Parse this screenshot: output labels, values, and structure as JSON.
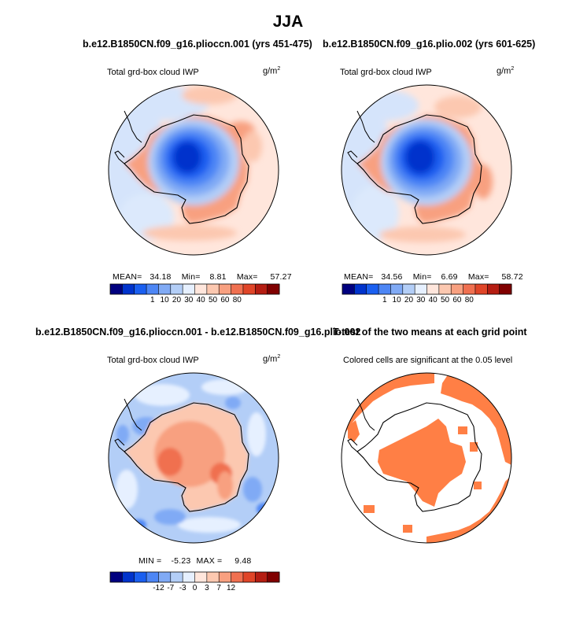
{
  "figure_title": "JJA",
  "colors": {
    "abs_scale": [
      "#00007f",
      "#0033cc",
      "#1a5ff0",
      "#4d86f5",
      "#80aaf5",
      "#b3cef7",
      "#e6f0ff",
      "#ffe6dc",
      "#fcc8b0",
      "#f8a080",
      "#f07050",
      "#e04528",
      "#b51d12",
      "#800000"
    ],
    "diff_scale": [
      "#00007f",
      "#0033cc",
      "#1a5ff0",
      "#4d86f5",
      "#80aaf5",
      "#b3cef7",
      "#e6f0ff",
      "#ffe6dc",
      "#fcc8b0",
      "#f8a080",
      "#f07050",
      "#e04528",
      "#b51d12",
      "#800000"
    ],
    "significance": "#ff7f45"
  },
  "panels": [
    {
      "run_title": "b.e12.B1850CN.f09_g16.plioccn.001 (yrs 451-475)",
      "variable": "Total grd-box cloud IWP",
      "units": "g/m",
      "units_exp": "2",
      "mean_label": "MEAN=",
      "mean": "34.18",
      "min_label": "Min=",
      "min": "8.81",
      "max_label": "Max=",
      "max": "57.27",
      "colorbar_ticks": [
        "1",
        "10",
        "20",
        "30",
        "40",
        "50",
        "60",
        "80"
      ]
    },
    {
      "run_title": "b.e12.B1850CN.f09_g16.plio.002 (yrs 601-625)",
      "variable": "Total grd-box cloud IWP",
      "units": "g/m",
      "units_exp": "2",
      "mean_label": "MEAN=",
      "mean": "34.56",
      "min_label": "Min=",
      "min": "6.69",
      "max_label": "Max=",
      "max": "58.72",
      "colorbar_ticks": [
        "1",
        "10",
        "20",
        "30",
        "40",
        "50",
        "60",
        "80"
      ]
    },
    {
      "run_title": "b.e12.B1850CN.f09_g16.plioccn.001 - b.e12.B1850CN.f09_g16.plio.002",
      "variable": "Total grd-box cloud IWP",
      "units": "g/m",
      "units_exp": "2",
      "min_label": "MIN =",
      "min": "-5.23",
      "max_label": "MAX =",
      "max": "9.48",
      "colorbar_ticks": [
        "-12",
        "-7",
        "-3",
        "0",
        "3",
        "7",
        "12"
      ]
    },
    {
      "run_title": "T-test of the two means at each grid point",
      "variable": "Colored cells are significant at the 0.05 level"
    }
  ],
  "chart_data": [
    {
      "type": "heatmap",
      "title": "b.e12.B1850CN.f09_g16.plioccn.001 (yrs 451-475)",
      "variable": "Total grd-box cloud IWP",
      "units": "g/m2",
      "projection": "south polar stereographic",
      "stats": {
        "mean": 34.18,
        "min": 8.81,
        "max": 57.27
      },
      "color_levels": [
        1,
        10,
        20,
        30,
        40,
        50,
        60,
        80
      ]
    },
    {
      "type": "heatmap",
      "title": "b.e12.B1850CN.f09_g16.plio.002 (yrs 601-625)",
      "variable": "Total grd-box cloud IWP",
      "units": "g/m2",
      "projection": "south polar stereographic",
      "stats": {
        "mean": 34.56,
        "min": 6.69,
        "max": 58.72
      },
      "color_levels": [
        1,
        10,
        20,
        30,
        40,
        50,
        60,
        80
      ]
    },
    {
      "type": "heatmap",
      "title": "b.e12.B1850CN.f09_g16.plioccn.001 - b.e12.B1850CN.f09_g16.plio.002",
      "variable": "Total grd-box cloud IWP",
      "units": "g/m2",
      "projection": "south polar stereographic",
      "stats": {
        "min": -5.23,
        "max": 9.48
      },
      "color_levels": [
        -12,
        -7,
        -3,
        0,
        3,
        7,
        12
      ]
    },
    {
      "type": "heatmap",
      "title": "T-test of the two means at each grid point",
      "note": "Colored cells are significant at the 0.05 level",
      "projection": "south polar stereographic"
    }
  ]
}
